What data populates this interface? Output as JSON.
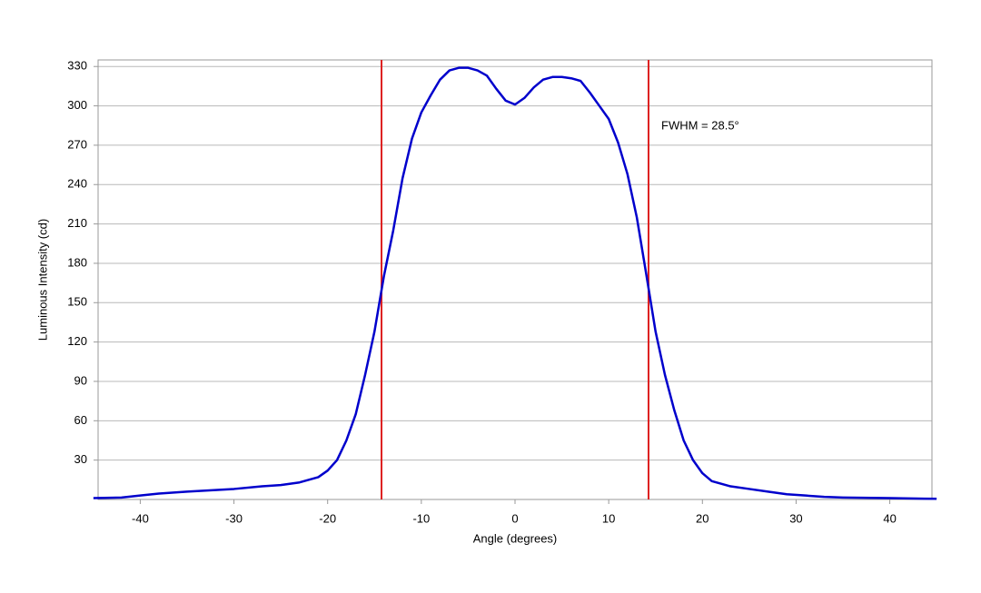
{
  "chart_data": {
    "type": "line",
    "xlabel": "Angle (degrees)",
    "ylabel": "Luminous Intensity (cd)",
    "annotation": "FWHM = 28.5°",
    "x": [
      -45,
      -42,
      -40,
      -38,
      -35,
      -30,
      -27,
      -25,
      -23,
      -21,
      -20,
      -19,
      -18,
      -17,
      -16,
      -15,
      -14,
      -13,
      -12,
      -11,
      -10,
      -9,
      -8,
      -7,
      -6,
      -5,
      -4,
      -3,
      -2,
      -1,
      0,
      1,
      2,
      3,
      4,
      5,
      6,
      7,
      8,
      9,
      10,
      11,
      12,
      13,
      14,
      15,
      16,
      17,
      18,
      19,
      20,
      21,
      22,
      23,
      25,
      27,
      29,
      31,
      33,
      35,
      40,
      45
    ],
    "values": [
      1,
      1.5,
      3,
      4.5,
      6,
      8,
      10,
      11,
      13,
      17,
      22,
      30,
      45,
      65,
      95,
      128,
      170,
      205,
      245,
      275,
      295,
      308,
      320,
      327,
      329,
      329,
      327,
      323,
      313,
      304,
      301,
      306,
      314,
      320,
      322,
      322,
      321,
      319,
      310,
      300,
      290,
      272,
      248,
      215,
      172,
      128,
      95,
      68,
      45,
      30,
      20,
      14,
      12,
      10,
      8,
      6,
      4,
      3,
      2,
      1.5,
      1,
      0.5
    ],
    "color": "#0000cc",
    "vlines": [
      -14.25,
      14.25
    ],
    "vline_color": "#dd2020",
    "xlim": [
      -44.5,
      44.5
    ],
    "ylim": [
      0,
      335
    ],
    "xticks": [
      -40,
      -30,
      -20,
      -10,
      0,
      10,
      20,
      30,
      40
    ],
    "yticks": [
      30,
      60,
      90,
      120,
      150,
      180,
      210,
      240,
      270,
      300,
      330
    ],
    "grid": true
  }
}
